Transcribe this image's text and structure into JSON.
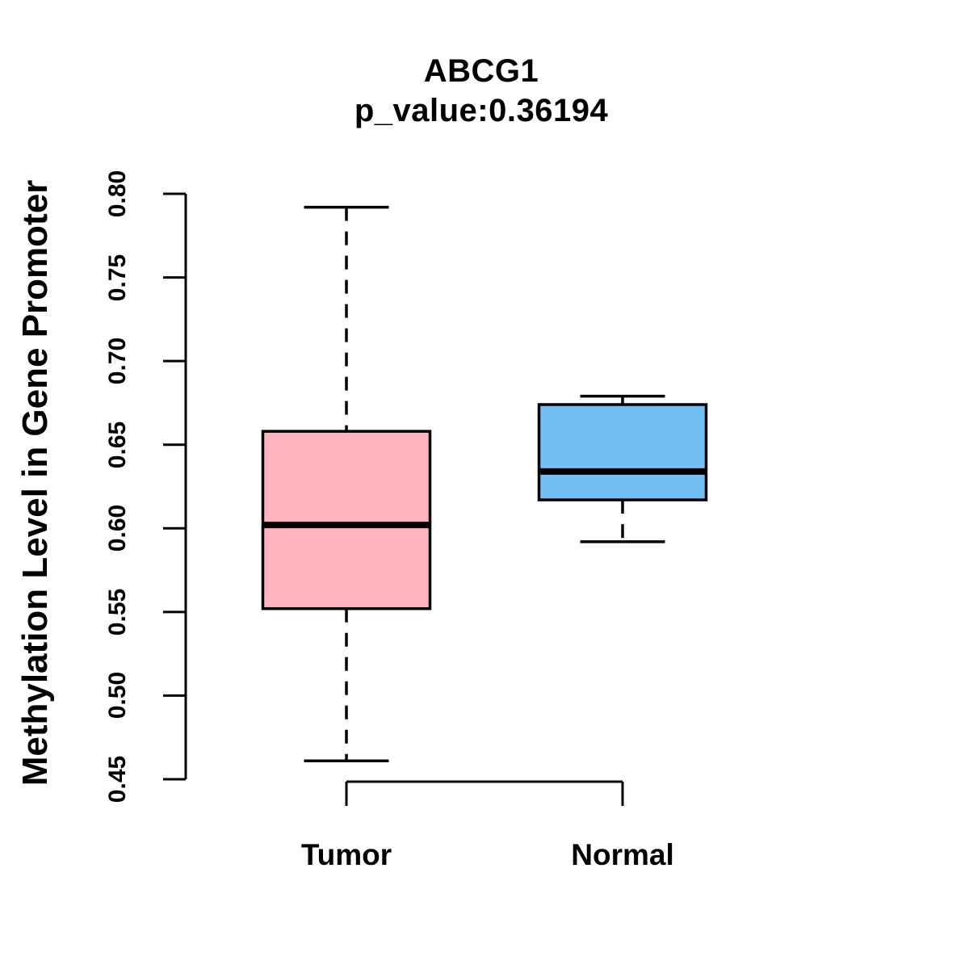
{
  "title": "ABCG1",
  "subtitle": "p_value:0.36194",
  "colors": {
    "background": "#FFFFFF",
    "axis": "#000000",
    "text": "#000000",
    "tumor_fill": "#FFB6C1",
    "normal_fill": "#73BEF5",
    "box_stroke": "#000000"
  },
  "chart_data": {
    "type": "boxplot",
    "title": "ABCG1",
    "subtitle": "p_value:0.36194",
    "xlabel": "",
    "ylabel": "Methylation Level in Gene Promoter",
    "ylim": [
      0.45,
      0.8
    ],
    "yticks": [
      0.45,
      0.5,
      0.55,
      0.6,
      0.65,
      0.7,
      0.75,
      0.8
    ],
    "ytick_format_decimals": 2,
    "grid": false,
    "legend": "none",
    "categories": [
      "Tumor",
      "Normal"
    ],
    "groups": [
      {
        "label": "Tumor",
        "fill": "#FFB6C1",
        "whisker_low": 0.461,
        "q1": 0.552,
        "median": 0.602,
        "q3": 0.658,
        "whisker_high": 0.792,
        "outliers": []
      },
      {
        "label": "Normal",
        "fill": "#73BEF5",
        "whisker_low": 0.592,
        "q1": 0.617,
        "median": 0.634,
        "q3": 0.674,
        "whisker_high": 0.679,
        "outliers": []
      }
    ]
  }
}
